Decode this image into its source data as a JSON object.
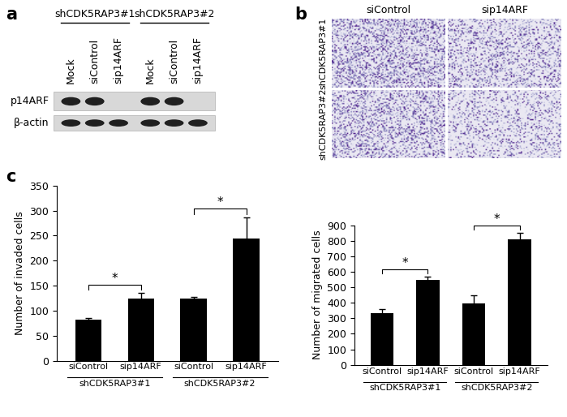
{
  "panel_labels": [
    "a",
    "b",
    "c"
  ],
  "blot": {
    "groups": [
      "shCDK5RAP3#1",
      "shCDK5RAP3#2"
    ],
    "lanes": [
      "Mock",
      "siControl",
      "sip14ARF"
    ],
    "rows": [
      {
        "label": "p14ARF",
        "bands": [
          true,
          true,
          false,
          true,
          true,
          false
        ]
      },
      {
        "label": "β-actin",
        "bands": [
          true,
          true,
          true,
          true,
          true,
          true
        ]
      }
    ]
  },
  "micrographs": {
    "columns": [
      "siControl",
      "sip14ARF"
    ],
    "rows": [
      "shCDK5RAP3#1",
      "shCDK5RAP3#2"
    ]
  },
  "chart_data": [
    {
      "type": "bar",
      "categories": [
        "siControl",
        "sip14ARF",
        "siControl",
        "sip14ARF"
      ],
      "groups": [
        {
          "label": "shCDK5RAP3#1",
          "members": [
            0,
            1
          ]
        },
        {
          "label": "shCDK5RAP3#2",
          "members": [
            2,
            3
          ]
        }
      ],
      "values": [
        82,
        124,
        125,
        244
      ],
      "errors": [
        3,
        11,
        3,
        42
      ],
      "y_label": "Number of invaded cells",
      "ylim": [
        0,
        350
      ],
      "yticks": [
        0,
        50,
        100,
        150,
        200,
        250,
        300,
        350
      ],
      "color": "#000000",
      "significance": [
        {
          "pair": [
            0,
            1
          ],
          "label": "*"
        },
        {
          "pair": [
            2,
            3
          ],
          "label": "*"
        }
      ]
    },
    {
      "type": "bar",
      "categories": [
        "siControl",
        "sip14ARF",
        "siControl",
        "sip14ARF"
      ],
      "groups": [
        {
          "label": "shCDK5RAP3#1",
          "members": [
            0,
            1
          ]
        },
        {
          "label": "shCDK5RAP3#2",
          "members": [
            2,
            3
          ]
        }
      ],
      "values": [
        335,
        545,
        397,
        808
      ],
      "errors": [
        25,
        25,
        50,
        45
      ],
      "y_label": "Number of migrated cells",
      "ylim": [
        0,
        900
      ],
      "yticks": [
        0,
        100,
        200,
        300,
        400,
        500,
        600,
        700,
        800,
        900
      ],
      "color": "#000000",
      "significance": [
        {
          "pair": [
            0,
            1
          ],
          "label": "*"
        },
        {
          "pair": [
            2,
            3
          ],
          "label": "*"
        }
      ]
    }
  ]
}
